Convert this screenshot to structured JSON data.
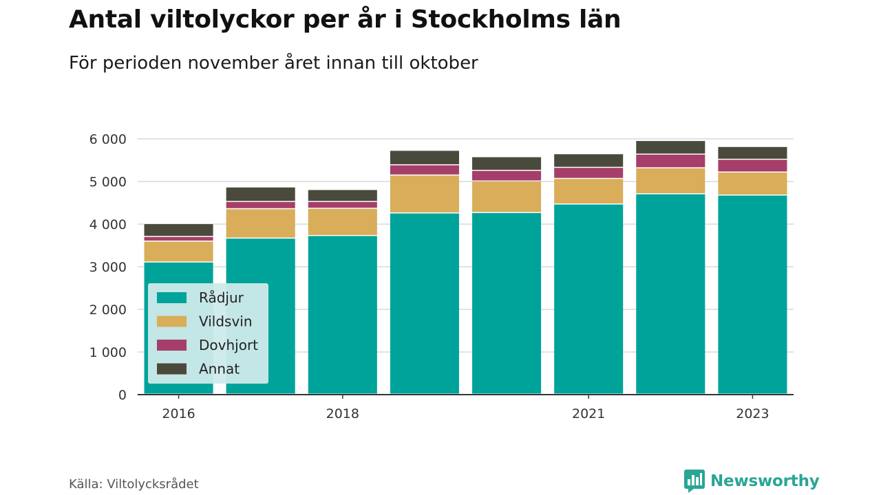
{
  "title": "Antal viltolyckor per år i Stockholms län",
  "subtitle": "För perioden november året innan till oktober",
  "source": "Källa: Viltolycksrådet",
  "brand": "Newsworthy",
  "colors": {
    "Rådjur": "#00a39a",
    "Vildsvin": "#d9ad5a",
    "Dovhjort": "#a53f69",
    "Annat": "#4a4a3c",
    "legend_bg": "#cdeaea",
    "grid": "#d8d8d8",
    "axis": "#333333",
    "brand": "#2aa596"
  },
  "chart_data": {
    "type": "bar",
    "stacked": true,
    "categories": [
      "2016",
      "2017",
      "2018",
      "2019",
      "2020",
      "2021",
      "2022",
      "2023"
    ],
    "x_tick_labels": [
      "2016",
      "",
      "2018",
      "",
      "",
      "2021",
      "",
      "2023"
    ],
    "series": [
      {
        "name": "Rådjur",
        "values": [
          3100,
          3660,
          3720,
          4250,
          4260,
          4460,
          4700,
          4670
        ]
      },
      {
        "name": "Vildsvin",
        "values": [
          490,
          690,
          640,
          890,
          740,
          600,
          610,
          540
        ]
      },
      {
        "name": "Dovhjort",
        "values": [
          110,
          170,
          160,
          240,
          250,
          260,
          320,
          300
        ]
      },
      {
        "name": "Annat",
        "values": [
          300,
          340,
          280,
          340,
          320,
          320,
          320,
          300
        ]
      }
    ],
    "y_ticks": [
      0,
      1000,
      2000,
      3000,
      4000,
      5000,
      6000
    ],
    "y_tick_labels": [
      "0",
      "1 000",
      "2 000",
      "3 000",
      "4 000",
      "5 000",
      "6 000"
    ],
    "ylim": [
      0,
      6000
    ],
    "grid": true,
    "legend_position": "bottom-left"
  }
}
